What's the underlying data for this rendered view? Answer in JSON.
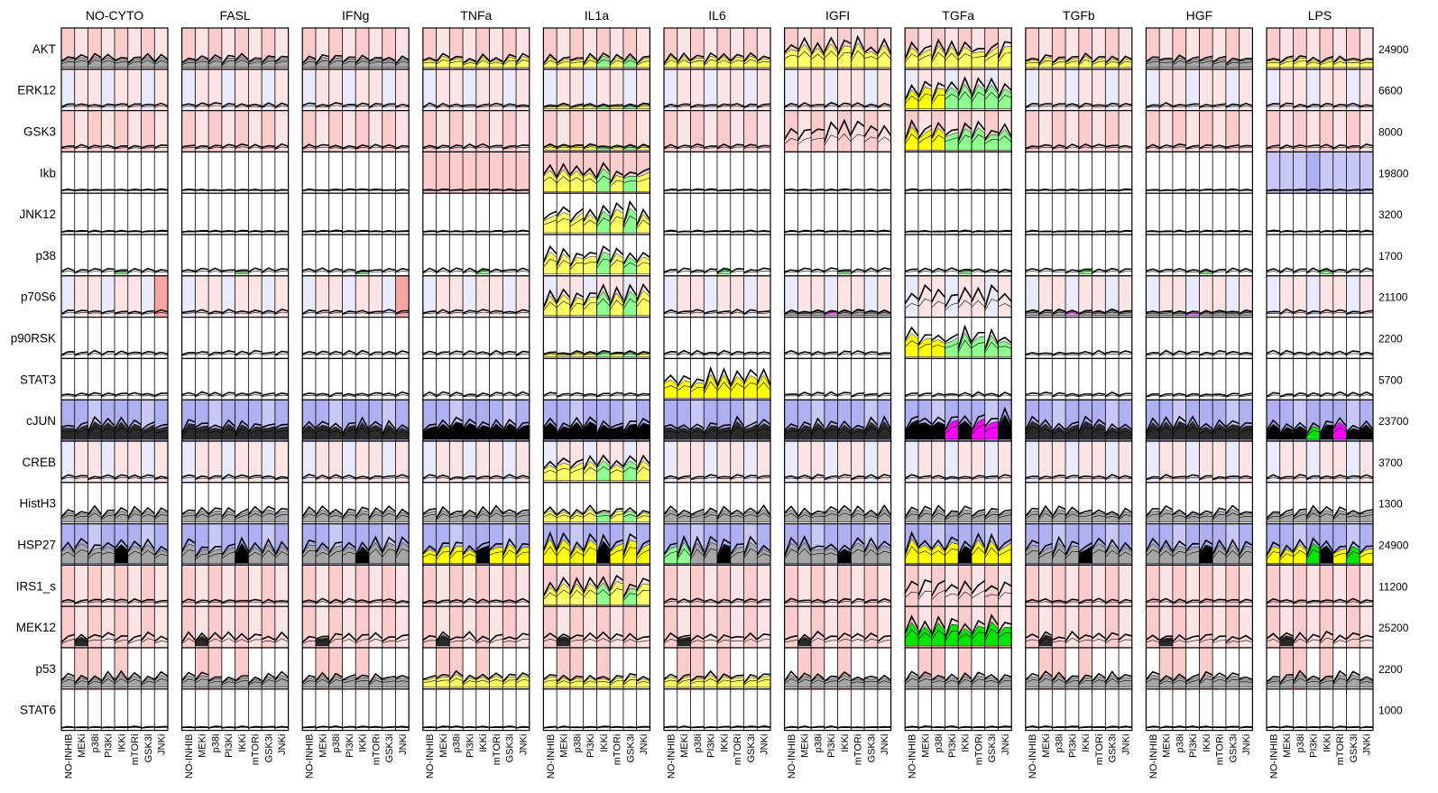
{
  "chart_data": {
    "type": "small-multiples-line",
    "description_of_layout": "grid of panels: columns = cytokine stimuli, rows = phosphoprotein readouts, each panel split into inhibitor sub-plots",
    "columns": [
      "NO-CYTO",
      "FASL",
      "IFNg",
      "TNFa",
      "IL1a",
      "IL6",
      "IGFI",
      "TGFa",
      "TGFb",
      "HGF",
      "LPS"
    ],
    "rows": [
      "AKT",
      "ERK12",
      "GSK3",
      "Ikb",
      "JNK12",
      "p38",
      "p70S6",
      "p90RSK",
      "STAT3",
      "cJUN",
      "CREB",
      "HistH3",
      "HSP27",
      "IRS1_s",
      "MEK12",
      "p53",
      "STAT6"
    ],
    "row_max": [
      "24900",
      "6600",
      "8000",
      "19800",
      "3200",
      "1700",
      "21100",
      "2200",
      "5700",
      "23700",
      "3700",
      "1300",
      "24900",
      "11200",
      "25200",
      "2200",
      "1000"
    ],
    "inhibitors": [
      "NO-INHIB",
      "MEKi",
      "p38i",
      "PI3Ki",
      "IKKi",
      "mTORi",
      "GSK3i",
      "JNKi"
    ],
    "fill_colors": {
      "none": "#ffffff",
      "grey": "#a6a6a6",
      "yellow": "#ffff66",
      "bright_yellow": "#ffff00",
      "light_green": "#8fff8f",
      "green": "#00e600",
      "pink": "#ff80ff",
      "magenta": "#ff00ff",
      "dark": "#2b2b2b",
      "black": "#000000"
    },
    "background_colors": {
      "white": "#ffffff",
      "light_pink": "#fde4e4",
      "pink": "#fbcccc",
      "strong_pink": "#f7a5a5",
      "light_blue": "#eaeafc",
      "blue": "#c8c8f5",
      "mid_blue": "#aeb0f0"
    },
    "highlighted_panels": {
      "IL1a": [
        "Ikb",
        "JNK12",
        "p38",
        "p70S6",
        "CREB",
        "HSP27",
        "IRS1_s"
      ],
      "IL6": [
        "STAT3"
      ],
      "TGFa": [
        "ERK12",
        "GSK3",
        "p70S6",
        "p90RSK",
        "cJUN",
        "HSP27",
        "IRS1_s",
        "MEK12"
      ],
      "IGFI": [
        "AKT",
        "GSK3"
      ]
    }
  }
}
